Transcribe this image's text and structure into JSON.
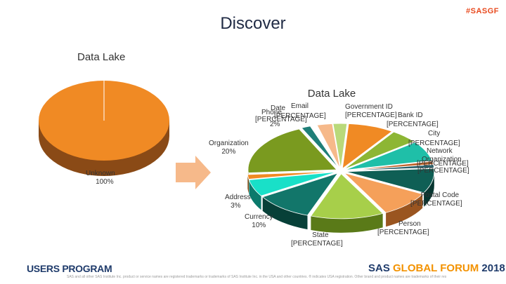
{
  "slide": {
    "title": "Discover",
    "hashtag": "#SASGF",
    "subtitle": "Data Lake",
    "footer_left": "USERS PROGRAM",
    "footer_right_prefix": "SAS",
    "footer_right_accent": "GLOBAL FORUM",
    "footer_right_suffix": "2018",
    "disclaimer": "SAS and all other SAS Institute Inc. product or service names are registered trademarks or trademarks of SAS Institute Inc. in the USA and other countries. ® indicates USA registration. Other brand and product names are trademarks of their respective companies."
  },
  "colors": {
    "orange": "#f08a24",
    "green": "#7a9a1f",
    "teal": "#1fa39a",
    "arrow": "#f6b98a"
  },
  "chart_data": [
    {
      "type": "pie",
      "title": "",
      "slices": [
        {
          "label": "Unknown",
          "value": "100%"
        }
      ]
    },
    {
      "type": "pie",
      "title": "Data Lake",
      "slices": [
        {
          "label": "Government ID",
          "value": "[PERCENTAGE]"
        },
        {
          "label": "Bank ID",
          "value": "[PERCENTAGE]"
        },
        {
          "label": "City",
          "value": "[PERCENTAGE]"
        },
        {
          "label": "Network",
          "value": "[PERCENTAGE]"
        },
        {
          "label": "Organization",
          "value": "[PERCENTAGE]"
        },
        {
          "label": "Postal Code",
          "value": "[PERCENTAGE]"
        },
        {
          "label": "Person",
          "value": "[PERCENTAGE]"
        },
        {
          "label": "State",
          "value": "[PERCENTAGE]"
        },
        {
          "label": "Currency",
          "value": "10%"
        },
        {
          "label": "Address",
          "value": "3%"
        },
        {
          "label": "Organization",
          "value": "20%"
        },
        {
          "label": "Date",
          "value": "[PERCENTAGE]"
        },
        {
          "label": "Phone",
          "value": "2%"
        },
        {
          "label": "Email",
          "value": "[PERCENTAGE]"
        }
      ]
    }
  ]
}
